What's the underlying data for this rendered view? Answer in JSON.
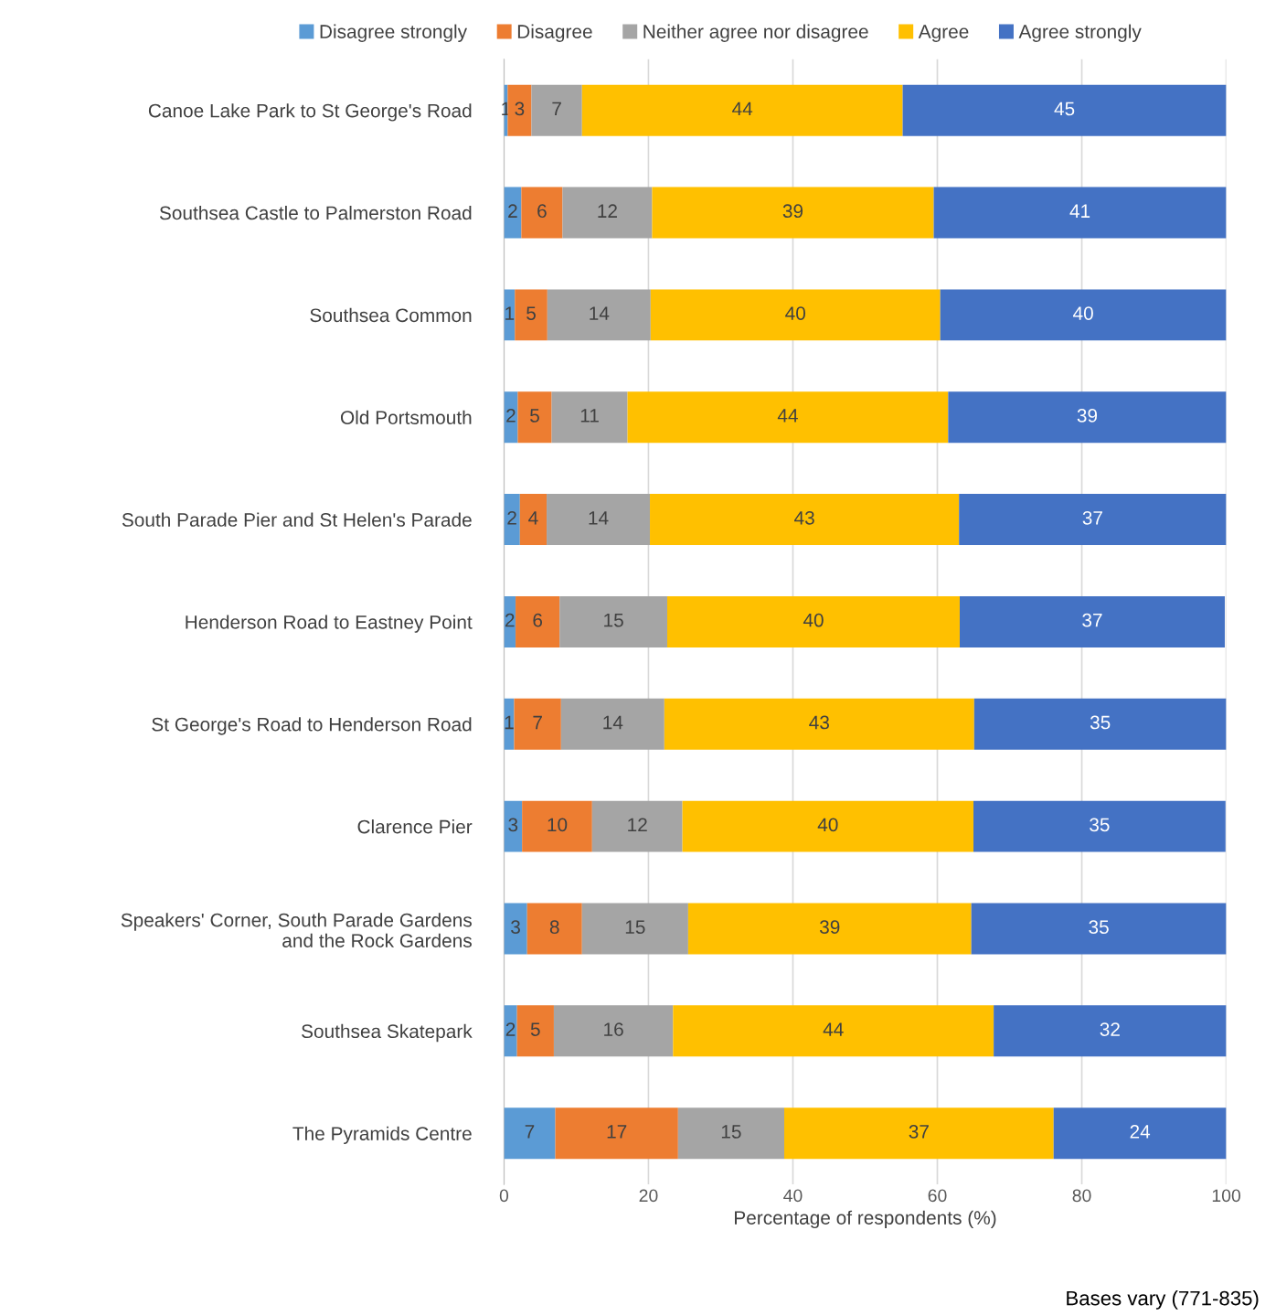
{
  "chart_data": {
    "type": "bar",
    "orientation": "horizontal",
    "stacked": true,
    "categories": [
      "Canoe Lake Park to St George's Road",
      "Southsea Castle to Palmerston Road",
      "Southsea Common",
      "Old Portsmouth",
      "South Parade Pier and St Helen's Parade",
      "Henderson Road to Eastney Point",
      "St George's Road to Henderson Road",
      "Clarence Pier",
      "Speakers' Corner, South Parade Gardens\nand the Rock Gardens",
      "Southsea Skatepark",
      "The Pyramids Centre"
    ],
    "series": [
      {
        "name": "Disagree strongly",
        "color": "#5b9bd5",
        "values": [
          0.5,
          2.4,
          1.5,
          1.9,
          2.2,
          1.6,
          1.4,
          2.5,
          3.2,
          1.8,
          7.1
        ],
        "value_labels": [
          "1",
          "2",
          "1",
          "2",
          "2",
          "2",
          "1",
          "3",
          "3",
          "2",
          "7"
        ]
      },
      {
        "name": "Disagree",
        "color": "#ed7d31",
        "values": [
          3.3,
          5.7,
          4.5,
          4.7,
          3.7,
          6.1,
          6.5,
          9.7,
          7.6,
          5.1,
          17.0
        ],
        "value_labels": [
          "3",
          "6",
          "5",
          "5",
          "4",
          "6",
          "7",
          "10",
          "8",
          "5",
          "17"
        ]
      },
      {
        "name": "Neither agree nor disagree",
        "color": "#a5a5a5",
        "values": [
          7.0,
          12.4,
          14.3,
          10.5,
          14.3,
          14.9,
          14.3,
          12.5,
          14.7,
          16.5,
          14.7
        ],
        "value_labels": [
          "7",
          "12",
          "14",
          "11",
          "14",
          "15",
          "14",
          "12",
          "15",
          "16",
          "15"
        ]
      },
      {
        "name": "Agree",
        "color": "#ffc000",
        "values": [
          44.4,
          39.0,
          40.1,
          44.4,
          42.8,
          40.5,
          42.9,
          40.3,
          39.2,
          44.4,
          37.3
        ],
        "value_labels": [
          "44",
          "39",
          "40",
          "44",
          "43",
          "40",
          "43",
          "40",
          "39",
          "44",
          "37"
        ]
      },
      {
        "name": "Agree strongly",
        "color": "#4472c4",
        "values": [
          44.8,
          40.5,
          39.6,
          38.5,
          37.0,
          36.7,
          34.9,
          34.9,
          35.3,
          32.2,
          23.9
        ],
        "value_labels": [
          "45",
          "41",
          "40",
          "39",
          "37",
          "37",
          "35",
          "35",
          "35",
          "32",
          "24"
        ]
      }
    ],
    "xlim": [
      0,
      100
    ],
    "xticks": [
      0,
      20,
      40,
      60,
      80,
      100
    ],
    "xlabel": "Percentage of respondents (%)",
    "grid": "x",
    "legend": "top",
    "annotations": [
      "Bases vary (771-835)"
    ]
  }
}
